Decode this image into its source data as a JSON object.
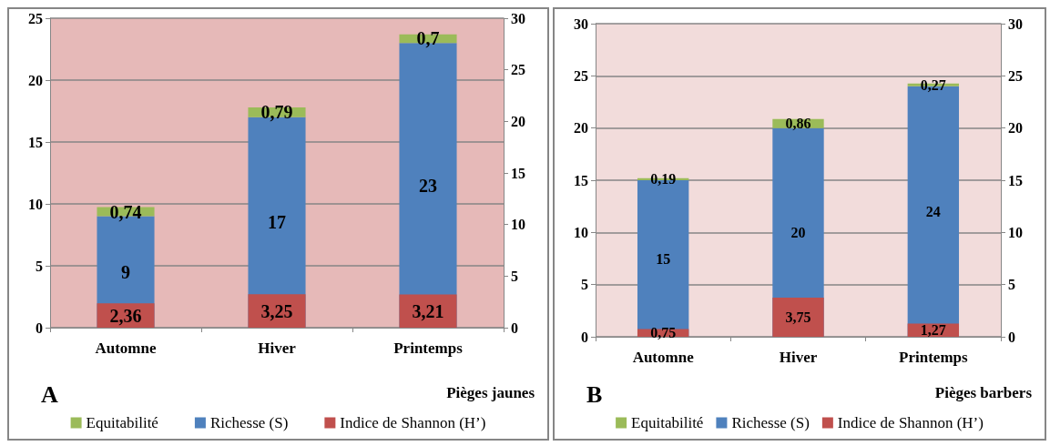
{
  "chart_data": [
    {
      "type": "bar",
      "xlabel": "Pièges jaunes",
      "annotations": [
        "A"
      ],
      "categories": [
        "Automne",
        "Hiver",
        "Printemps"
      ],
      "stacked": true,
      "grid": "y",
      "legend": "bottom",
      "ylim": [
        0,
        25
      ],
      "yticks": [
        0,
        5,
        10,
        15,
        20,
        25
      ],
      "y2lim": [
        0,
        30
      ],
      "y2ticks": [
        0,
        5,
        10,
        15,
        20,
        25,
        30
      ],
      "series": [
        {
          "name": "Richesse (S)",
          "color": "#4f81bd",
          "values": [
            9,
            17,
            23
          ],
          "value_labels": [
            "9",
            "17",
            "23"
          ]
        },
        {
          "name": "Equitabilité",
          "color": "#9bbb59",
          "values": [
            0.74,
            0.79,
            0.7
          ],
          "value_labels": [
            "0,74",
            "0,79",
            "0,7"
          ]
        },
        {
          "name": "Indice de Shannon (H’)",
          "color": "#c0504d",
          "axis": "y2",
          "values": [
            2.36,
            3.25,
            3.21
          ],
          "value_labels": [
            "2,36",
            "3,25",
            "3,21"
          ]
        }
      ]
    },
    {
      "type": "bar",
      "xlabel": "Pièges barbers",
      "annotations": [
        "B"
      ],
      "categories": [
        "Automne",
        "Hiver",
        "Printemps"
      ],
      "stacked": true,
      "grid": "y",
      "legend": "bottom",
      "ylim": [
        0,
        30
      ],
      "yticks": [
        0,
        5,
        10,
        15,
        20,
        25,
        30
      ],
      "y2lim": [
        0,
        30
      ],
      "y2ticks": [
        0,
        5,
        10,
        15,
        20,
        25,
        30
      ],
      "series": [
        {
          "name": "Richesse (S)",
          "color": "#4f81bd",
          "values": [
            15,
            20,
            24
          ],
          "value_labels": [
            "15",
            "20",
            "24"
          ]
        },
        {
          "name": "Equitabilité",
          "color": "#9bbb59",
          "values": [
            0.19,
            0.86,
            0.27
          ],
          "value_labels": [
            "0,19",
            "0,86",
            "0,27"
          ]
        },
        {
          "name": "Indice de Shannon (H’)",
          "color": "#c0504d",
          "axis": "y2",
          "values": [
            0.75,
            3.75,
            1.27
          ],
          "value_labels": [
            "0,75",
            "3,75",
            "1,27"
          ]
        }
      ]
    }
  ]
}
